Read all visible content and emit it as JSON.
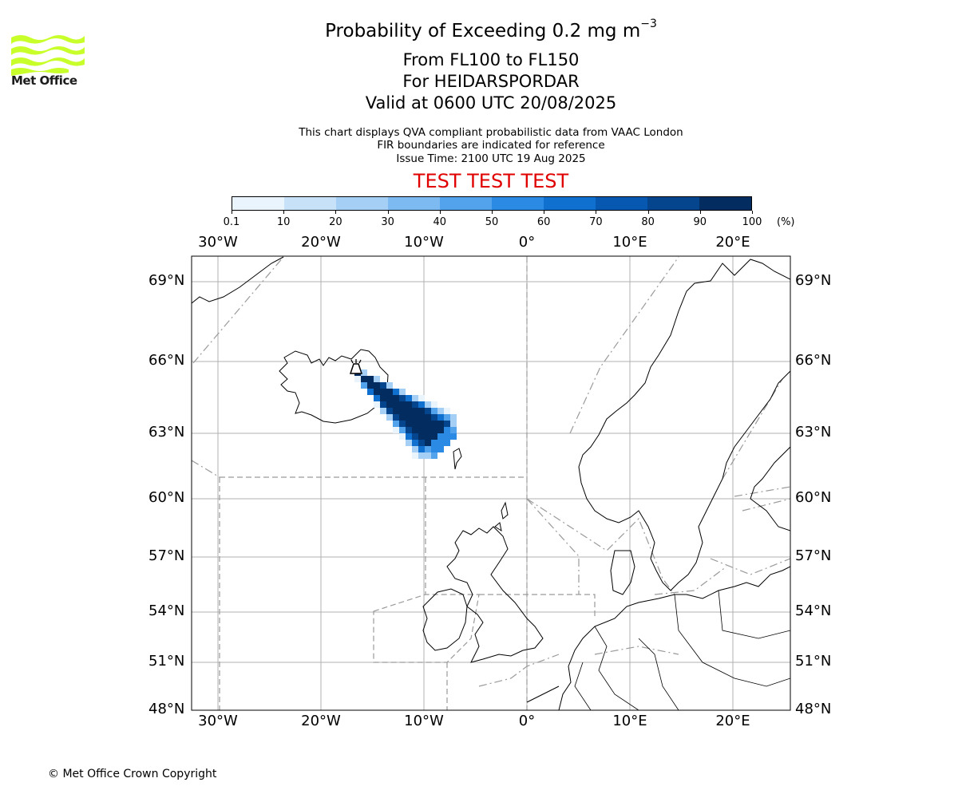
{
  "logo": {
    "text": "Met Office",
    "icon": "met-office-wave-logo",
    "color": "#c8ff2a"
  },
  "header": {
    "title_prefix": "Probability of Exceeding 0.2 mg m",
    "title_exponent": "−3",
    "subtitle_1": "From FL100 to FL150",
    "subtitle_2": "For HEIDARSPORDAR",
    "subtitle_3": "Valid at 0600 UTC 20/08/2025",
    "info_1": "This chart displays QVA compliant probabilistic data from VAAC London",
    "info_2": "FIR boundaries are indicated for reference",
    "info_3": "Issue Time: 2100 UTC 19 Aug 2025",
    "test_banner": "TEST TEST TEST",
    "test_color": "#e00000"
  },
  "colorbar": {
    "ticks": [
      "0.1",
      "10",
      "20",
      "30",
      "40",
      "50",
      "60",
      "70",
      "80",
      "90",
      "100"
    ],
    "unit": "(%)",
    "colors": [
      "#eaf4fd",
      "#c7e1f9",
      "#a5cff5",
      "#7dbaf1",
      "#53a3ec",
      "#2b8ae4",
      "#0f70d0",
      "#0658b0",
      "#04458e",
      "#032c60"
    ]
  },
  "map": {
    "lon_labels": [
      "30°W",
      "20°W",
      "10°W",
      "0°",
      "10°E",
      "20°E"
    ],
    "lon_values": [
      -30,
      -20,
      -10,
      0,
      10,
      20
    ],
    "lat_labels": [
      "69°N",
      "66°N",
      "63°N",
      "60°N",
      "57°N",
      "54°N",
      "51°N",
      "48°N"
    ],
    "lat_values": [
      69,
      66,
      63,
      60,
      57,
      54,
      51,
      48
    ],
    "volcano": {
      "name_icon": "volcano-icon",
      "lon": -16.7,
      "lat": 65.7
    }
  },
  "footer": {
    "copyright": "© Met Office Crown Copyright"
  }
}
